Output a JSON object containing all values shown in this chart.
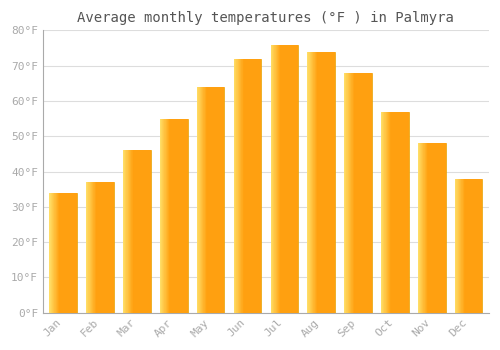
{
  "title": "Average monthly temperatures (°F ) in Palmyra",
  "months": [
    "Jan",
    "Feb",
    "Mar",
    "Apr",
    "May",
    "Jun",
    "Jul",
    "Aug",
    "Sep",
    "Oct",
    "Nov",
    "Dec"
  ],
  "values": [
    34,
    37,
    46,
    55,
    64,
    72,
    76,
    74,
    68,
    57,
    48,
    38
  ],
  "bar_color_light": "#FFB300",
  "bar_color_dark": "#FF8C00",
  "background_color": "#FFFFFF",
  "plot_bg_color": "#FFFFFF",
  "grid_color": "#DDDDDD",
  "ylim": [
    0,
    80
  ],
  "yticks": [
    0,
    10,
    20,
    30,
    40,
    50,
    60,
    70,
    80
  ],
  "ytick_labels": [
    "0°F",
    "10°F",
    "20°F",
    "30°F",
    "40°F",
    "50°F",
    "60°F",
    "70°F",
    "80°F"
  ],
  "tick_color": "#AAAAAA",
  "title_fontsize": 10,
  "tick_fontsize": 8,
  "font_family": "monospace",
  "bar_width": 0.75
}
